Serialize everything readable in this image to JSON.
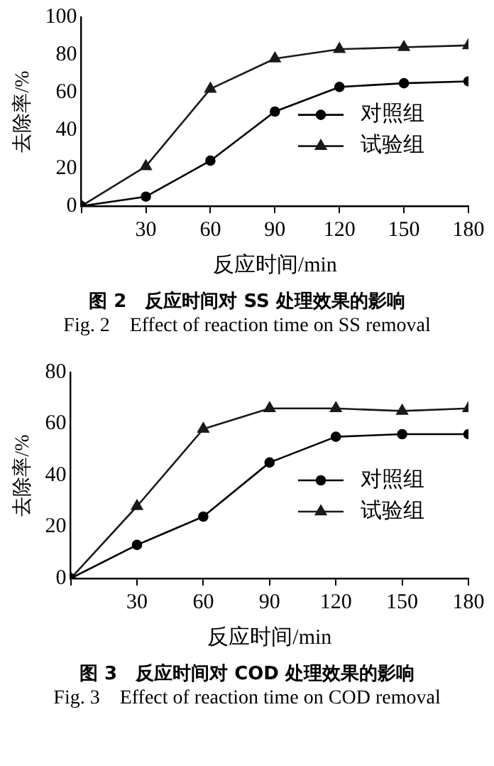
{
  "chart_data": [
    {
      "type": "line",
      "title": "图 2　反应时间对 SS 处理效果的影响",
      "subtitle": "Fig. 2　Effect of reaction time on SS removal",
      "xlabel": "反应时间/min",
      "ylabel": "去除率/%",
      "x": [
        0,
        30,
        60,
        90,
        120,
        150,
        180
      ],
      "series": [
        {
          "name": "对照组",
          "color": "#000000",
          "marker": "circle",
          "values": [
            0,
            5,
            24,
            50,
            63,
            65,
            66
          ]
        },
        {
          "name": "试验组",
          "color": "#1a1a1a",
          "marker": "triangle",
          "values": [
            0,
            21,
            62,
            78,
            83,
            84,
            85
          ]
        }
      ],
      "xlim": [
        0,
        180
      ],
      "xticks": [
        {
          "value": 0,
          "label": null
        },
        30,
        60,
        90,
        120,
        150,
        180
      ],
      "ylim": [
        0,
        100
      ],
      "yticks": [
        0,
        20,
        40,
        60,
        80,
        100
      ],
      "grid": false,
      "legend": "right",
      "line_style": "solid"
    },
    {
      "type": "line",
      "title": "图 3　反应时间对 COD 处理效果的影响",
      "subtitle": "Fig. 3　Effect of reaction time on COD removal",
      "xlabel": "反应时间/min",
      "ylabel": "去除率/%",
      "x": [
        0,
        30,
        60,
        90,
        120,
        150,
        180
      ],
      "series": [
        {
          "name": "对照组",
          "color": "#000000",
          "marker": "circle",
          "values": [
            0,
            13,
            24,
            45,
            55,
            56,
            56
          ]
        },
        {
          "name": "试验组",
          "color": "#1a1a1a",
          "marker": "triangle",
          "values": [
            0,
            28,
            58,
            66,
            66,
            65,
            66
          ]
        }
      ],
      "xlim": [
        0,
        180
      ],
      "xticks": [
        {
          "value": 0,
          "label": null
        },
        30,
        60,
        90,
        120,
        150,
        180
      ],
      "ylim": [
        0,
        80
      ],
      "yticks": [
        0,
        20,
        40,
        60,
        80
      ],
      "grid": false,
      "legend": "right",
      "line_style": "solid"
    }
  ]
}
